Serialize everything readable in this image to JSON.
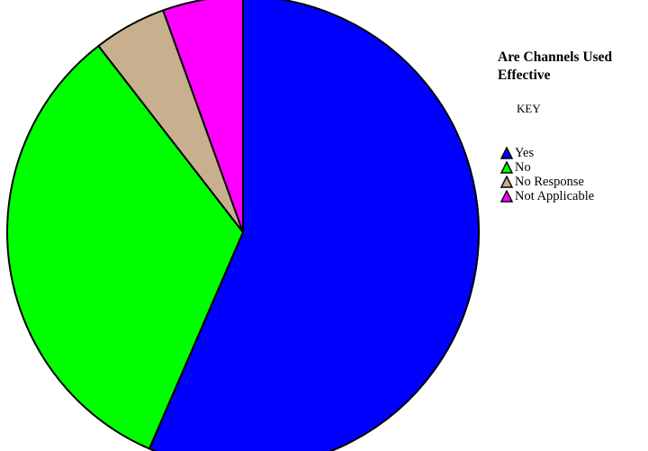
{
  "chart_data": {
    "type": "pie",
    "title": "Are Channels Used Effective",
    "legend_title": "KEY",
    "legend_position": "right",
    "start": "top",
    "direction": "clockwise",
    "slices": [
      {
        "label": "Yes",
        "value": 56.5,
        "color": "#0000ff"
      },
      {
        "label": "No",
        "value": 33.0,
        "color": "#00ff00"
      },
      {
        "label": "No Response",
        "value": 5.0,
        "color": "#c8b08f"
      },
      {
        "label": "Not Applicable",
        "value": 5.5,
        "color": "#ff00ff"
      }
    ]
  }
}
